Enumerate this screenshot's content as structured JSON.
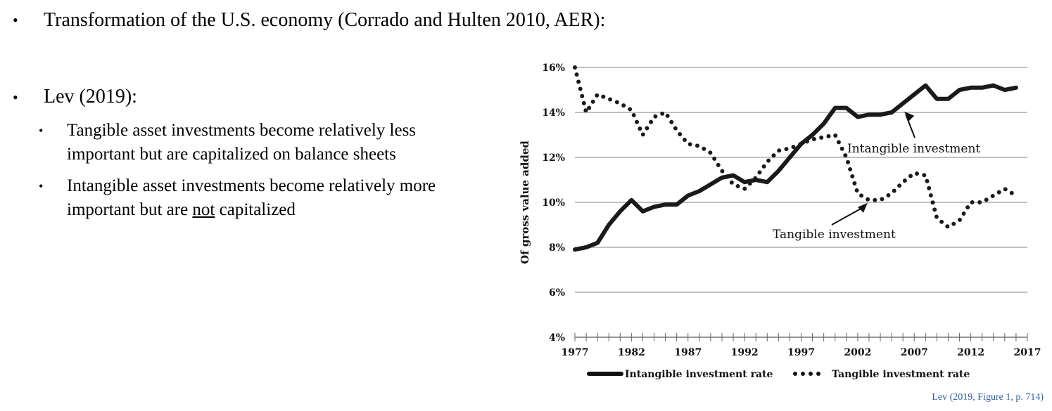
{
  "slide": {
    "heading": "Transformation of the U.S. economy (Corrado and Hulten 2010, AER):",
    "lev_heading": "Lev (2019):",
    "sub_bullets": [
      {
        "line1": "Tangible asset investments become relatively less",
        "line2": "important but are capitalized on balance sheets"
      },
      {
        "line1": "Intangible asset investments become relatively more",
        "line2_pre": "important but are ",
        "line2_underlined": "not",
        "line2_post": " capitalized"
      }
    ],
    "source": "Lev (2019, Figure 1, p. 714)"
  },
  "chart_data": {
    "type": "line",
    "ylabel": "Of gross value added",
    "ylim": [
      4,
      16
    ],
    "yticks": [
      4,
      6,
      8,
      10,
      12,
      14,
      16
    ],
    "ytick_labels": [
      "4%",
      "6%",
      "8%",
      "10%",
      "12%",
      "14%",
      "16%"
    ],
    "xlim": [
      1977,
      2017
    ],
    "xticks": [
      1977,
      1982,
      1987,
      1992,
      1997,
      2002,
      2007,
      2012,
      2017
    ],
    "xtick_labels": [
      "1977",
      "1982",
      "1987",
      "1992",
      "1997",
      "2002",
      "2007",
      "2012",
      "2017"
    ],
    "grid": "horizontal",
    "legend": "bottom",
    "x": [
      1977,
      1978,
      1979,
      1980,
      1981,
      1982,
      1983,
      1984,
      1985,
      1986,
      1987,
      1988,
      1989,
      1990,
      1991,
      1992,
      1993,
      1994,
      1995,
      1996,
      1997,
      1998,
      1999,
      2000,
      2001,
      2002,
      2003,
      2004,
      2005,
      2006,
      2007,
      2008,
      2009,
      2010,
      2011,
      2012,
      2013,
      2014,
      2015,
      2016
    ],
    "series": [
      {
        "name": "Intangible investment rate",
        "style": "solid",
        "color": "#1a1a1a",
        "values": [
          7.9,
          8.0,
          8.2,
          9.0,
          9.6,
          10.1,
          9.6,
          9.8,
          9.9,
          9.9,
          10.3,
          10.5,
          10.8,
          11.1,
          11.2,
          10.9,
          11.0,
          10.9,
          11.4,
          12.0,
          12.6,
          13.0,
          13.5,
          14.2,
          14.2,
          13.8,
          13.9,
          13.9,
          14.0,
          14.4,
          14.8,
          15.2,
          14.6,
          14.6,
          15.0,
          15.1,
          15.1,
          15.2,
          15.0,
          15.1
        ]
      },
      {
        "name": "Tangible investment rate",
        "style": "dotted",
        "color": "#1a1a1a",
        "values": [
          16.0,
          14.0,
          14.8,
          14.6,
          14.4,
          14.1,
          13.0,
          13.8,
          14.0,
          13.2,
          12.6,
          12.5,
          12.2,
          11.4,
          10.8,
          10.6,
          11.1,
          11.8,
          12.3,
          12.4,
          12.6,
          12.8,
          12.9,
          13.0,
          12.0,
          10.4,
          10.1,
          10.1,
          10.4,
          10.9,
          11.3,
          11.2,
          9.3,
          8.9,
          9.2,
          10.0,
          10.0,
          10.3,
          10.6,
          10.3
        ]
      }
    ],
    "annotations": [
      {
        "text": "Intangible investment",
        "target_x": 2006,
        "target_y": 14.1
      },
      {
        "text": "Tangible investment",
        "target_x": 2003,
        "target_y": 10.1
      }
    ]
  }
}
